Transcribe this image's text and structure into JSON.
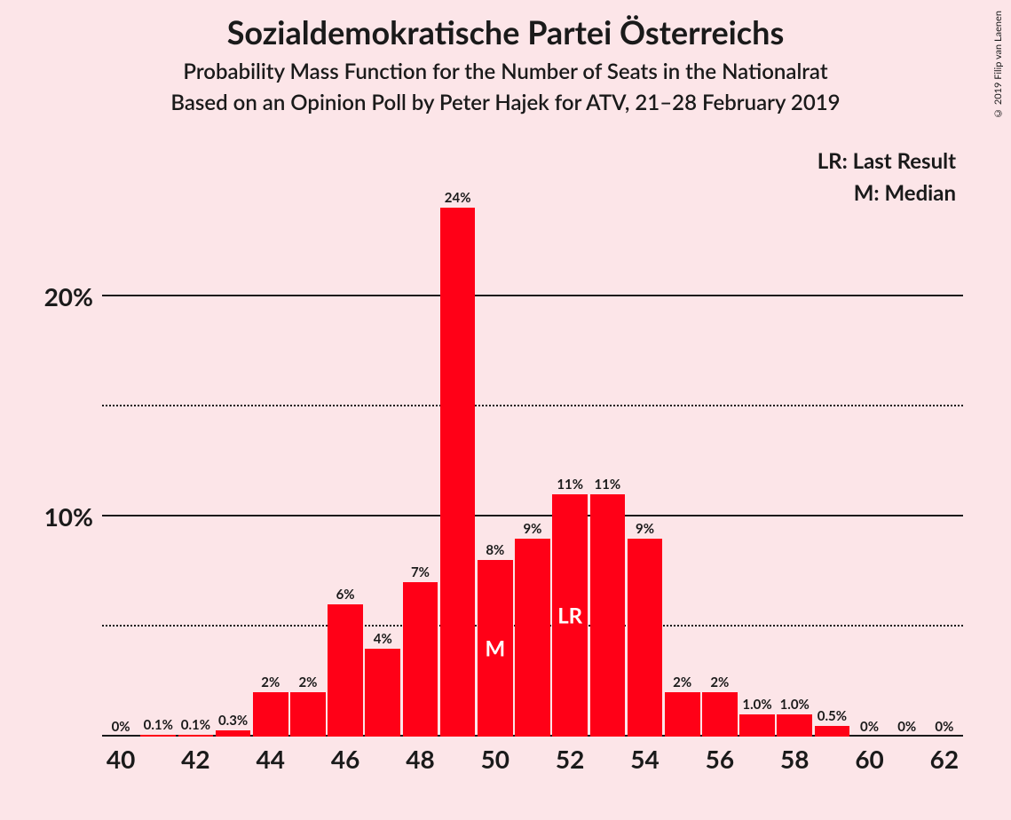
{
  "title": "Sozialdemokratische Partei Österreichs",
  "subtitle1": "Probability Mass Function for the Number of Seats in the Nationalrat",
  "subtitle2": "Based on an Opinion Poll by Peter Hajek for ATV, 21–28 February 2019",
  "copyright": "© 2019 Filip van Laenen",
  "legend": {
    "lr": "LR: Last Result",
    "m": "M: Median"
  },
  "chart": {
    "type": "bar",
    "bar_color": "#ff0017",
    "background_color": "#fce5e8",
    "text_color": "#1a1a1a",
    "inner_label_color": "#ffffff",
    "title_fontsize": 36,
    "subtitle_fontsize": 24,
    "axis_fontsize": 28,
    "bar_label_fontsize": 15,
    "inner_label_fontsize": 24,
    "xlim": [
      40,
      62
    ],
    "ylim": [
      0,
      27
    ],
    "y_ticks_major": [
      10,
      20
    ],
    "y_ticks_minor": [
      5,
      15
    ],
    "x_tick_step": 2,
    "bar_width_ratio": 0.94,
    "median_seat": 50,
    "last_result_seat": 52,
    "data": [
      {
        "seat": 40,
        "pct": 0,
        "label": "0%"
      },
      {
        "seat": 41,
        "pct": 0.1,
        "label": "0.1%"
      },
      {
        "seat": 42,
        "pct": 0.1,
        "label": "0.1%"
      },
      {
        "seat": 43,
        "pct": 0.3,
        "label": "0.3%"
      },
      {
        "seat": 44,
        "pct": 2,
        "label": "2%"
      },
      {
        "seat": 45,
        "pct": 2,
        "label": "2%"
      },
      {
        "seat": 46,
        "pct": 6,
        "label": "6%"
      },
      {
        "seat": 47,
        "pct": 4,
        "label": "4%"
      },
      {
        "seat": 48,
        "pct": 7,
        "label": "7%"
      },
      {
        "seat": 49,
        "pct": 24,
        "label": "24%"
      },
      {
        "seat": 50,
        "pct": 8,
        "label": "8%"
      },
      {
        "seat": 51,
        "pct": 9,
        "label": "9%"
      },
      {
        "seat": 52,
        "pct": 11,
        "label": "11%"
      },
      {
        "seat": 53,
        "pct": 11,
        "label": "11%"
      },
      {
        "seat": 54,
        "pct": 9,
        "label": "9%"
      },
      {
        "seat": 55,
        "pct": 2,
        "label": "2%"
      },
      {
        "seat": 56,
        "pct": 2,
        "label": "2%"
      },
      {
        "seat": 57,
        "pct": 1.0,
        "label": "1.0%"
      },
      {
        "seat": 58,
        "pct": 1.0,
        "label": "1.0%"
      },
      {
        "seat": 59,
        "pct": 0.5,
        "label": "0.5%"
      },
      {
        "seat": 60,
        "pct": 0,
        "label": "0%"
      },
      {
        "seat": 61,
        "pct": 0,
        "label": "0%"
      },
      {
        "seat": 62,
        "pct": 0,
        "label": "0%"
      }
    ]
  }
}
